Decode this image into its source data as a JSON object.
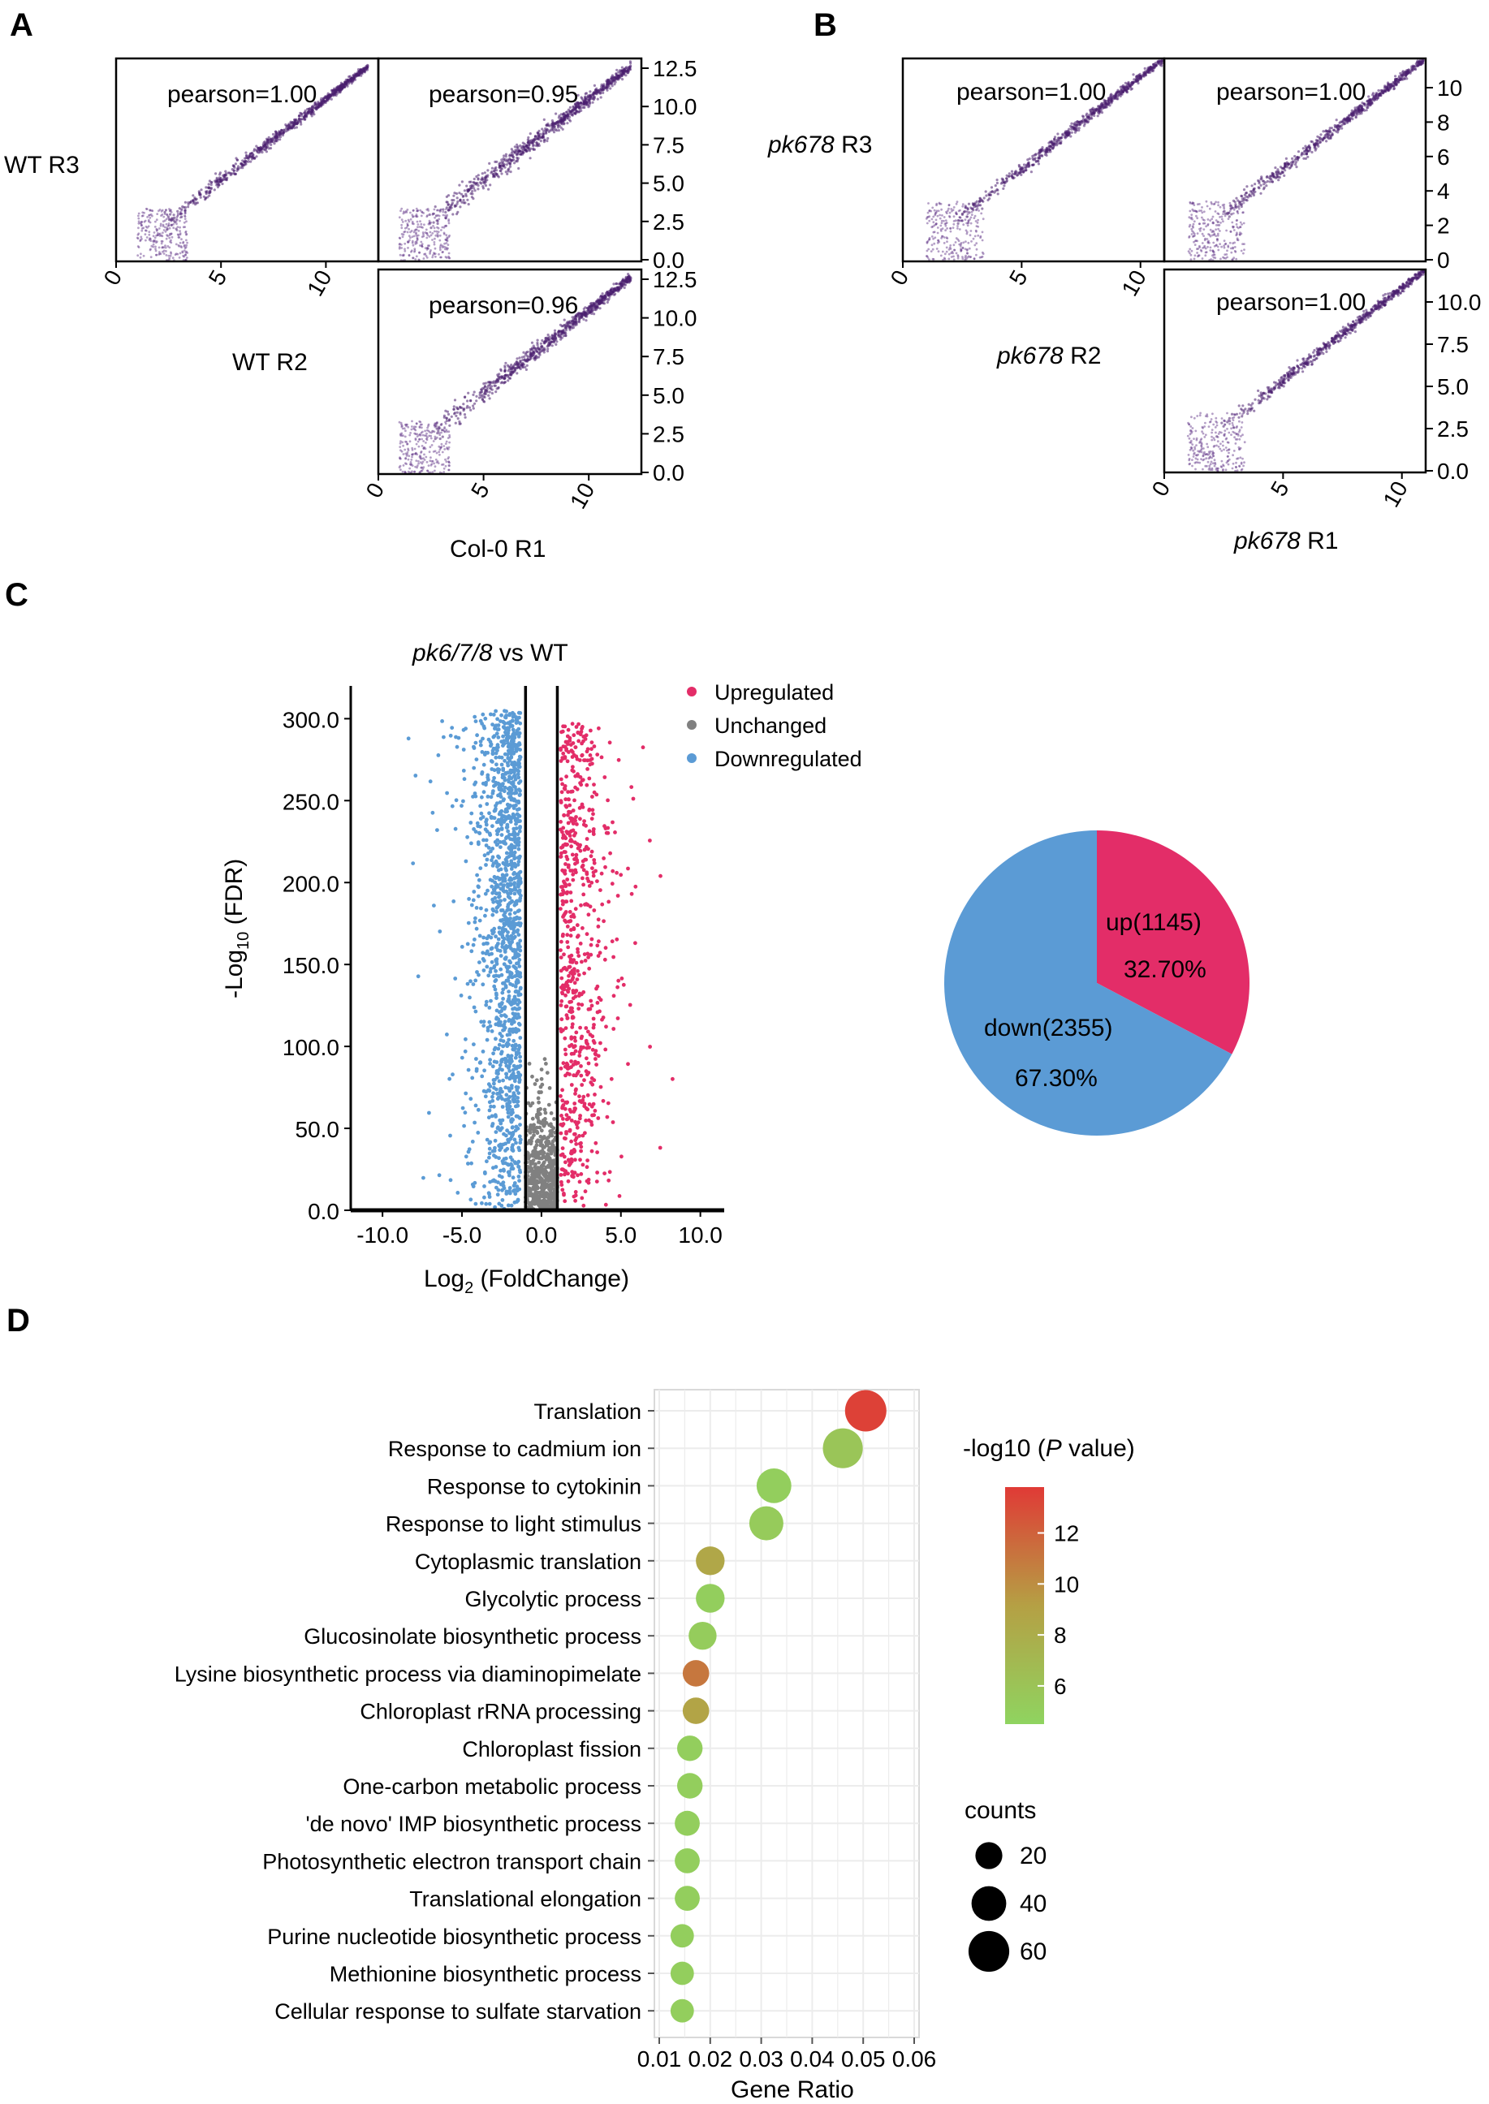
{
  "panels": {
    "A": {
      "letter": "A",
      "cells": [
        {
          "pearson": "pearson=1.00",
          "yticks": []
        },
        {
          "pearson": "pearson=0.95",
          "yticks": [
            "12.5",
            "10.0",
            "7.5",
            "5.0",
            "2.5",
            "0.0"
          ]
        },
        {
          "pearson": "pearson=0.96",
          "yticks": [
            "12.5",
            "10.0",
            "7.5",
            "5.0",
            "2.5",
            "0.0"
          ]
        }
      ],
      "xticks": [
        "0",
        "5",
        "10"
      ],
      "row_labels": [
        "WT R3",
        "WT R2"
      ],
      "bottom_label": "Col-0 R1"
    },
    "B": {
      "letter": "B",
      "cells": [
        {
          "pearson": "pearson=1.00",
          "yticks": []
        },
        {
          "pearson": "pearson=1.00",
          "yticks": [
            "10",
            "8",
            "6",
            "4",
            "2",
            "0"
          ]
        },
        {
          "pearson": "pearson=1.00",
          "yticks": [
            "10.0",
            "7.5",
            "5.0",
            "2.5",
            "0.0"
          ]
        }
      ],
      "xticks": [
        "0",
        "5",
        "10"
      ],
      "row_labels": [
        {
          "italic": "pk678",
          "rest": " R3"
        },
        {
          "italic": "pk678",
          "rest": " R2"
        }
      ],
      "bottom_label": {
        "italic": "pk678",
        "rest": " R1"
      }
    },
    "C": {
      "letter": "C"
    },
    "D": {
      "letter": "D"
    }
  },
  "chart_data": [
    {
      "type": "scatter",
      "panel": "A",
      "cells": [
        {
          "r": 1.0,
          "xlim": [
            0,
            12.5
          ],
          "ylim": [
            0,
            12.5
          ]
        },
        {
          "r": 0.95,
          "xlim": [
            0,
            12.5
          ],
          "ylim": [
            0,
            12.5
          ]
        },
        {
          "r": 0.96,
          "xlim": [
            0,
            12.5
          ],
          "ylim": [
            0,
            12.5
          ]
        }
      ]
    },
    {
      "type": "scatter",
      "panel": "B",
      "cells": [
        {
          "r": 1.0,
          "xlim": [
            0,
            11
          ],
          "ylim": [
            0,
            11
          ]
        },
        {
          "r": 1.0,
          "xlim": [
            0,
            11
          ],
          "ylim": [
            0,
            11
          ]
        },
        {
          "r": 1.0,
          "xlim": [
            0,
            11
          ],
          "ylim": [
            0,
            11
          ]
        }
      ]
    },
    {
      "type": "scatter",
      "panel": "C-volcano",
      "title": {
        "italic": "pk6/7/8",
        "rest": " vs WT"
      },
      "xlabel": {
        "base": "Log",
        "sub": "2",
        "rest": " (FoldChange)"
      },
      "ylabel": {
        "base": "-Log",
        "sub": "10",
        "rest": " (FDR)"
      },
      "xlim": [
        -12,
        11.5
      ],
      "ylim": [
        0,
        320
      ],
      "xticks": [
        -10,
        -5,
        0,
        5,
        10
      ],
      "yticks": [
        0,
        50,
        100,
        150,
        200,
        250,
        300
      ],
      "xtick_labels": [
        "-10.0",
        "-5.0",
        "0.0",
        "5.0",
        "10.0"
      ],
      "ytick_labels": [
        "0.0",
        "50.0",
        "100.0",
        "150.0",
        "200.0",
        "250.0",
        "300.0"
      ],
      "thresholds": [
        -1,
        1
      ],
      "legend": [
        {
          "name": "Upregulated",
          "color": "#e32d68"
        },
        {
          "name": "Unchanged",
          "color": "#808080"
        },
        {
          "name": "Downregulated",
          "color": "#5b9bd5"
        }
      ]
    },
    {
      "type": "pie",
      "panel": "C-pie",
      "slices": [
        {
          "label": "up(1145)",
          "percent_label": "32.70%",
          "value": 1145,
          "color": "#e32d68"
        },
        {
          "label": "down(2355)",
          "percent_label": "67.30%",
          "value": 2355,
          "color": "#5b9bd5"
        }
      ]
    },
    {
      "type": "scatter",
      "panel": "D",
      "xlabel": "Gene Ratio",
      "xlim": [
        0.01,
        0.06
      ],
      "xticks": [
        "0.01",
        "0.02",
        "0.03",
        "0.04",
        "0.05",
        "0.06"
      ],
      "colorbar_title": {
        "pre": "-log10 (",
        "italic": "P",
        "post": " value)"
      },
      "colorbar_ticks": [
        "12",
        "10",
        "8",
        "6"
      ],
      "colorbar_range": [
        4.5,
        13.8
      ],
      "size_legend_title": "counts",
      "size_legend": [
        20,
        40,
        60
      ],
      "terms": [
        {
          "name": "Translation",
          "ratio": 0.0505,
          "logp": 13.5,
          "count": 62
        },
        {
          "name": "Response to cadmium ion",
          "ratio": 0.046,
          "logp": 5.8,
          "count": 57
        },
        {
          "name": "Response to cytokinin",
          "ratio": 0.0325,
          "logp": 5.0,
          "count": 40
        },
        {
          "name": "Response to light stimulus",
          "ratio": 0.031,
          "logp": 5.3,
          "count": 38
        },
        {
          "name": "Cytoplasmic translation",
          "ratio": 0.02,
          "logp": 8.5,
          "count": 24
        },
        {
          "name": "Glycolytic process",
          "ratio": 0.02,
          "logp": 5.0,
          "count": 24
        },
        {
          "name": "Glucosinolate biosynthetic process",
          "ratio": 0.0185,
          "logp": 5.2,
          "count": 22
        },
        {
          "name": "Lysine biosynthetic process via diaminopimelate",
          "ratio": 0.0172,
          "logp": 11.0,
          "count": 19
        },
        {
          "name": "Chloroplast rRNA processing",
          "ratio": 0.0172,
          "logp": 8.8,
          "count": 19
        },
        {
          "name": "Chloroplast fission",
          "ratio": 0.016,
          "logp": 5.0,
          "count": 17
        },
        {
          "name": "One-carbon metabolic process",
          "ratio": 0.016,
          "logp": 5.0,
          "count": 17
        },
        {
          "name": "'de novo' IMP biosynthetic process",
          "ratio": 0.0155,
          "logp": 5.0,
          "count": 16
        },
        {
          "name": "Photosynthetic electron transport chain",
          "ratio": 0.0155,
          "logp": 5.0,
          "count": 16
        },
        {
          "name": "Translational elongation",
          "ratio": 0.0155,
          "logp": 5.0,
          "count": 16
        },
        {
          "name": "Purine nucleotide biosynthetic process",
          "ratio": 0.0145,
          "logp": 5.0,
          "count": 13
        },
        {
          "name": "Methionine biosynthetic process",
          "ratio": 0.0145,
          "logp": 5.0,
          "count": 13
        },
        {
          "name": "Cellular response to sulfate starvation",
          "ratio": 0.0145,
          "logp": 5.0,
          "count": 13
        }
      ]
    }
  ]
}
